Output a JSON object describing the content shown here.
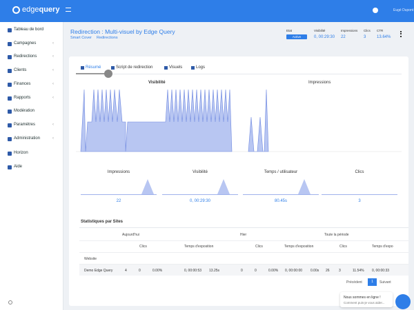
{
  "header": {
    "logo": [
      "edge",
      "query"
    ],
    "user": "Eugé Dupont"
  },
  "sidebar": {
    "items": [
      "Tableau de bord",
      "Campagnes",
      "Redirections",
      "Clients",
      "Finances",
      "Rapports",
      "Modération",
      "Paramètres",
      "Administration",
      "Horizon",
      "Aide"
    ]
  },
  "page": {
    "title": "Redirection : Multi-visuel by Edge Query",
    "breadcrumb": [
      "Smart Cover",
      "Redirections"
    ]
  },
  "stats": [
    {
      "label": "Etat",
      "value": "Active"
    },
    {
      "label": "Visibilité",
      "value": "0, 00:29:30"
    },
    {
      "label": "Impressions",
      "value": "22"
    },
    {
      "label": "Clics",
      "value": "3"
    },
    {
      "label": "CTR",
      "value": "13.64%"
    }
  ],
  "tabs": [
    "Résumé",
    "Script de redirection",
    "Visuels",
    "Logs"
  ],
  "charts": [
    {
      "title": "Visibilité"
    },
    {
      "title": "Impressions"
    }
  ],
  "cards": [
    {
      "title": "Impressions",
      "value": "22"
    },
    {
      "title": "Visibilité",
      "value": "0, 00:29:30"
    },
    {
      "title": "Temps / utilisateur",
      "value": "80.45s"
    },
    {
      "title": "Clics",
      "value": "3"
    }
  ],
  "table": {
    "title": "Statistiques par Sites",
    "groups": [
      "Aujourd'hui",
      "Hier",
      "Toute la période"
    ],
    "subheaders": [
      "Clics",
      "Temps d'exposition",
      "Clics",
      "Temps d'exposition",
      "Clics",
      "Temps d'expo"
    ],
    "column": "Website",
    "rows": [
      [
        "Demo Edge Query",
        "4",
        "0",
        "0.00%",
        "0, 00:00:53",
        "13.25s",
        "0",
        "0",
        "0.00%",
        "0, 00:00:00",
        "0.00s",
        "26",
        "3",
        "11.54%",
        "0, 00:00:33"
      ]
    ]
  },
  "pagination": [
    "Précédent",
    "1",
    "Suivant"
  ],
  "chat": {
    "title": "Nous sommes en ligne !",
    "subtitle": "Comment puis-je vous aider..."
  }
}
